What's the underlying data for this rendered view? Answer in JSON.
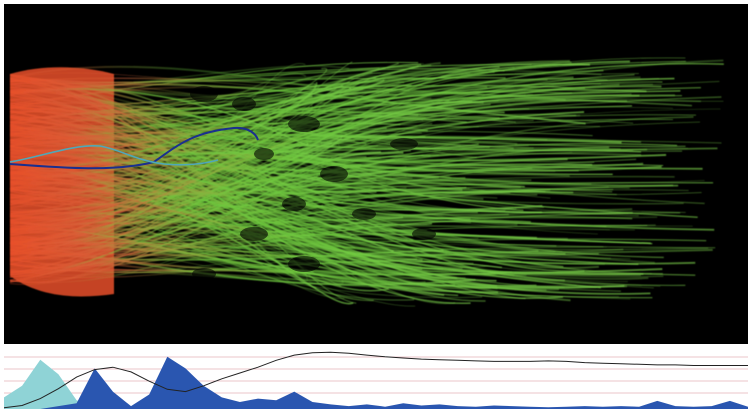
{
  "flow_view": {
    "background": "#000000",
    "source_color": "#e8502a",
    "spread_color": "#6cc83c",
    "highlight_path_colors": [
      "#1a2f8f",
      "#4fa8b8"
    ]
  },
  "timeline": {
    "background": "#ffffff",
    "gridline_color": "#c85a6a",
    "series_light": {
      "color": "#8fd3d6",
      "values": [
        20,
        40,
        85,
        60,
        15,
        5,
        3,
        2,
        2,
        1,
        1,
        1,
        1,
        1,
        1,
        1,
        1,
        1,
        1,
        1,
        1,
        1,
        1,
        1,
        1,
        1,
        1,
        1,
        1,
        1,
        1,
        1,
        1,
        1,
        1,
        1,
        1,
        1,
        1,
        1,
        1,
        1
      ]
    },
    "series_dark": {
      "color": "#2a56b0",
      "values": [
        0,
        0,
        0,
        5,
        10,
        70,
        30,
        5,
        25,
        90,
        70,
        40,
        20,
        12,
        18,
        15,
        30,
        12,
        8,
        5,
        8,
        4,
        10,
        6,
        8,
        5,
        4,
        6,
        5,
        4,
        3,
        4,
        5,
        4,
        5,
        4,
        14,
        5,
        4,
        5,
        14,
        4
      ]
    },
    "trend_line": {
      "color": "#222222",
      "values": [
        2,
        6,
        18,
        35,
        55,
        68,
        72,
        64,
        48,
        34,
        30,
        40,
        52,
        62,
        72,
        84,
        93,
        97,
        98,
        96,
        93,
        90,
        88,
        86,
        85,
        84,
        83,
        82,
        82,
        82,
        83,
        82,
        80,
        79,
        78,
        77,
        76,
        76,
        75,
        75,
        75,
        75
      ]
    }
  }
}
